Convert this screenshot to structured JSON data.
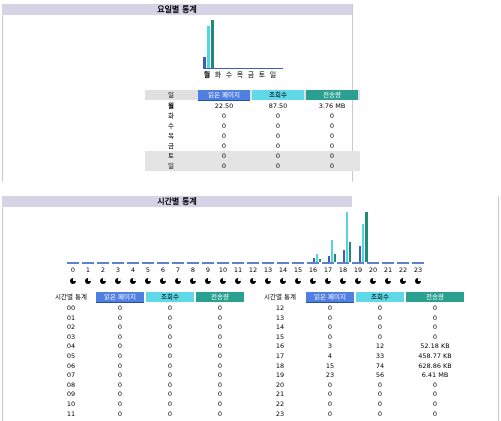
{
  "weekday_section": {
    "title": "요일별 통계",
    "days": [
      "월",
      "화",
      "수",
      "목",
      "금",
      "토",
      "일"
    ],
    "active_day": "월",
    "headers": {
      "day": "일",
      "pages": "읽은 페이지",
      "views": "조회수",
      "transfer": "전송량"
    },
    "rows": [
      {
        "day": "월",
        "pages": "22.50",
        "views": "87.50",
        "transfer": "3.76 MB"
      },
      {
        "day": "화",
        "pages": "0",
        "views": "0",
        "transfer": "0"
      },
      {
        "day": "수",
        "pages": "0",
        "views": "0",
        "transfer": "0"
      },
      {
        "day": "목",
        "pages": "0",
        "views": "0",
        "transfer": "0"
      },
      {
        "day": "금",
        "pages": "0",
        "views": "0",
        "transfer": "0"
      },
      {
        "day": "토",
        "pages": "0",
        "views": "0",
        "transfer": "0"
      },
      {
        "day": "일",
        "pages": "0",
        "views": "0",
        "transfer": "0"
      }
    ]
  },
  "hourly_section": {
    "title": "시간별 통계",
    "hours": [
      "0",
      "1",
      "2",
      "3",
      "4",
      "5",
      "6",
      "7",
      "8",
      "9",
      "10",
      "11",
      "12",
      "13",
      "14",
      "15",
      "16",
      "17",
      "18",
      "19",
      "20",
      "21",
      "22",
      "23"
    ],
    "headers": {
      "hour": "시간별 통계",
      "pages": "읽은 페이지",
      "views": "조회수",
      "transfer": "전송량"
    },
    "left_rows": [
      {
        "hour": "00",
        "pages": "0",
        "views": "0",
        "transfer": "0"
      },
      {
        "hour": "01",
        "pages": "0",
        "views": "0",
        "transfer": "0"
      },
      {
        "hour": "02",
        "pages": "0",
        "views": "0",
        "transfer": "0"
      },
      {
        "hour": "03",
        "pages": "0",
        "views": "0",
        "transfer": "0"
      },
      {
        "hour": "04",
        "pages": "0",
        "views": "0",
        "transfer": "0"
      },
      {
        "hour": "05",
        "pages": "0",
        "views": "0",
        "transfer": "0"
      },
      {
        "hour": "06",
        "pages": "0",
        "views": "0",
        "transfer": "0"
      },
      {
        "hour": "07",
        "pages": "0",
        "views": "0",
        "transfer": "0"
      },
      {
        "hour": "08",
        "pages": "0",
        "views": "0",
        "transfer": "0"
      },
      {
        "hour": "09",
        "pages": "0",
        "views": "0",
        "transfer": "0"
      },
      {
        "hour": "10",
        "pages": "0",
        "views": "0",
        "transfer": "0"
      },
      {
        "hour": "11",
        "pages": "0",
        "views": "0",
        "transfer": "0"
      }
    ],
    "right_rows": [
      {
        "hour": "12",
        "pages": "0",
        "views": "0",
        "transfer": "0"
      },
      {
        "hour": "13",
        "pages": "0",
        "views": "0",
        "transfer": "0"
      },
      {
        "hour": "14",
        "pages": "0",
        "views": "0",
        "transfer": "0"
      },
      {
        "hour": "15",
        "pages": "0",
        "views": "0",
        "transfer": "0"
      },
      {
        "hour": "16",
        "pages": "3",
        "views": "12",
        "transfer": "52.18 KB"
      },
      {
        "hour": "17",
        "pages": "4",
        "views": "33",
        "transfer": "458.77 KB"
      },
      {
        "hour": "18",
        "pages": "15",
        "views": "74",
        "transfer": "628.86 KB"
      },
      {
        "hour": "19",
        "pages": "23",
        "views": "56",
        "transfer": "6.41 MB"
      },
      {
        "hour": "20",
        "pages": "0",
        "views": "0",
        "transfer": "0"
      },
      {
        "hour": "21",
        "pages": "0",
        "views": "0",
        "transfer": "0"
      },
      {
        "hour": "22",
        "pages": "0",
        "views": "0",
        "transfer": "0"
      },
      {
        "hour": "23",
        "pages": "0",
        "views": "0",
        "transfer": "0"
      }
    ]
  },
  "colors": {
    "pages": "#3d5fb8",
    "views": "#57d4e4",
    "transfer": "#1d8c76",
    "title_bar": "#d6d3e6"
  },
  "icons": {
    "hour_marker": "clock-pie-icon"
  }
}
